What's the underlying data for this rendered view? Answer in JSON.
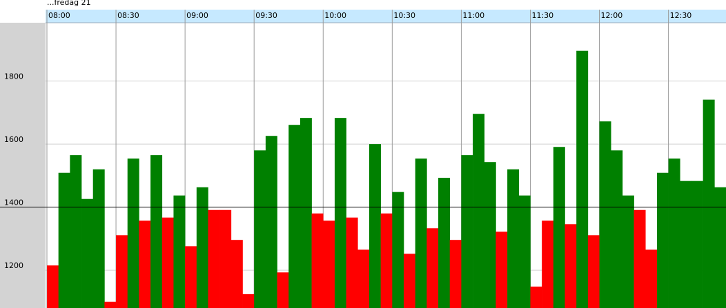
{
  "chart_data": {
    "type": "bar",
    "title": "...fredag 21",
    "categories": [
      "08:00",
      null,
      null,
      null,
      null,
      null,
      "08:30",
      null,
      null,
      null,
      null,
      null,
      "09:00",
      null,
      null,
      null,
      null,
      null,
      "09:30",
      null,
      null,
      null,
      null,
      null,
      "10:00",
      null,
      null,
      null,
      null,
      null,
      "10:30",
      null,
      null,
      null,
      null,
      null,
      "11:00",
      null,
      null,
      null,
      null,
      null,
      "11:30",
      null,
      null,
      null,
      null,
      null,
      "12:00",
      null,
      null,
      null,
      null,
      null,
      "12:30",
      null,
      null,
      null,
      null
    ],
    "values": [
      1215,
      1509,
      1565,
      1426,
      1520,
      1100,
      1311,
      1554,
      1357,
      1565,
      1367,
      1437,
      1276,
      1463,
      1391,
      1391,
      1296,
      1124,
      1580,
      1626,
      1193,
      1661,
      1683,
      1380,
      1357,
      1683,
      1367,
      1265,
      1600,
      1380,
      1448,
      1252,
      1554,
      1333,
      1493,
      1296,
      1565,
      1696,
      1543,
      1322,
      1520,
      1437,
      1148,
      1357,
      1591,
      1346,
      1896,
      1311,
      1672,
      1580,
      1437,
      1391,
      1265,
      1509,
      1554,
      1483,
      1483,
      1741,
      1463
    ],
    "threshold": 1400,
    "above_color": "#008000",
    "below_color": "#ff0000",
    "ylim": [
      1080,
      1985
    ],
    "yticks": [
      1200,
      1400,
      1600,
      1800
    ],
    "grid": true
  }
}
